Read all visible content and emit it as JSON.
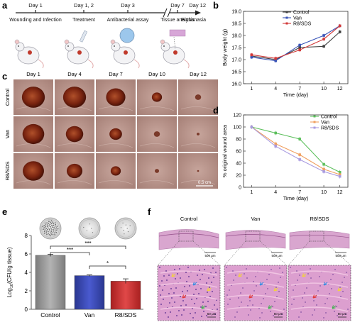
{
  "panels": {
    "a": {
      "letter": "a",
      "timeline": [
        {
          "day": "Day 1",
          "step": "Wounding and Infection"
        },
        {
          "day": "Day 1, 2",
          "step": "Treatment"
        },
        {
          "day": "Day 3",
          "step": "Antibacterial assay"
        },
        {
          "day": "Day 7",
          "step": "Tissue analysis"
        },
        {
          "day": "Day 12",
          "step": "Euthanasia"
        }
      ]
    },
    "b": {
      "letter": "b",
      "chart_data": {
        "type": "line",
        "x": [
          1,
          4,
          7,
          10,
          12
        ],
        "xticks": [
          "1",
          "4",
          "7",
          "10",
          "12"
        ],
        "xlabel": "Time (day)",
        "ylabel": "Body weight (g)",
        "ylim": [
          16.0,
          19.0
        ],
        "yticks": [
          "16.0",
          "16.5",
          "17.0",
          "17.5",
          "18.0",
          "18.5",
          "19.0"
        ],
        "legend_position": "top-left",
        "series": [
          {
            "name": "Control",
            "color": "#404040",
            "values": [
              17.15,
              17.0,
              17.5,
              17.55,
              18.15
            ]
          },
          {
            "name": "Van",
            "color": "#3a55b8",
            "values": [
              17.1,
              16.95,
              17.6,
              18.0,
              18.4
            ]
          },
          {
            "name": "R8/SDS",
            "color": "#d23a3a",
            "values": [
              17.2,
              17.05,
              17.4,
              17.85,
              18.4
            ]
          }
        ]
      }
    },
    "c": {
      "letter": "c",
      "days": [
        "Day 1",
        "Day 4",
        "Day 7",
        "Day 10",
        "Day 12"
      ],
      "groups": [
        "Control",
        "Van",
        "R8/SDS"
      ],
      "wound_size": [
        [
          0.95,
          0.95,
          0.8,
          0.42,
          0.25
        ],
        [
          0.9,
          0.72,
          0.52,
          0.25,
          0.12
        ],
        [
          0.88,
          0.65,
          0.42,
          0.18,
          0.08
        ]
      ],
      "scale_bar": "0.5 cm"
    },
    "d": {
      "letter": "d",
      "chart_data": {
        "type": "line",
        "x": [
          1,
          4,
          7,
          10,
          12
        ],
        "xticks": [
          "1",
          "4",
          "7",
          "10",
          "12"
        ],
        "xlabel": "Time (day)",
        "ylabel": "% original wound area",
        "ylim": [
          0,
          120
        ],
        "yticks": [
          "0",
          "20",
          "40",
          "60",
          "80",
          "100",
          "120"
        ],
        "legend_position": "top-right",
        "series": [
          {
            "name": "Control",
            "color": "#5cbf5c",
            "values": [
              100,
              90,
              80,
              38,
              25
            ]
          },
          {
            "name": "Van",
            "color": "#f0a060",
            "values": [
              100,
              72,
              54,
              30,
              21
            ]
          },
          {
            "name": "R8/SDS",
            "color": "#a99be0",
            "values": [
              100,
              68,
              46,
              26,
              18
            ]
          }
        ]
      }
    },
    "e": {
      "letter": "e",
      "chart_data": {
        "type": "bar",
        "categories": [
          "Control",
          "Van",
          "R8/SDS"
        ],
        "values": [
          5.85,
          3.65,
          3.05
        ],
        "errors": [
          0.12,
          0.08,
          0.25
        ],
        "colors": [
          "#9a9a9a",
          "#3a48b8",
          "#d33030"
        ],
        "ylabel_prefix": "Log",
        "ylabel_sub": "10",
        "ylabel_suffix": "(CFU/g tissue)",
        "ylim": [
          0,
          8
        ],
        "yticks": [
          "0",
          "2",
          "4",
          "6",
          "8"
        ],
        "significance": [
          {
            "from": 0,
            "to": 1,
            "label": "***"
          },
          {
            "from": 0,
            "to": 2,
            "label": "***"
          },
          {
            "from": 1,
            "to": 2,
            "label": "*"
          }
        ]
      }
    },
    "f": {
      "letter": "f",
      "groups": [
        "Control",
        "Van",
        "R8/SDS"
      ],
      "scale_top": "500 μm",
      "scale_bottom": "50 μm"
    }
  }
}
